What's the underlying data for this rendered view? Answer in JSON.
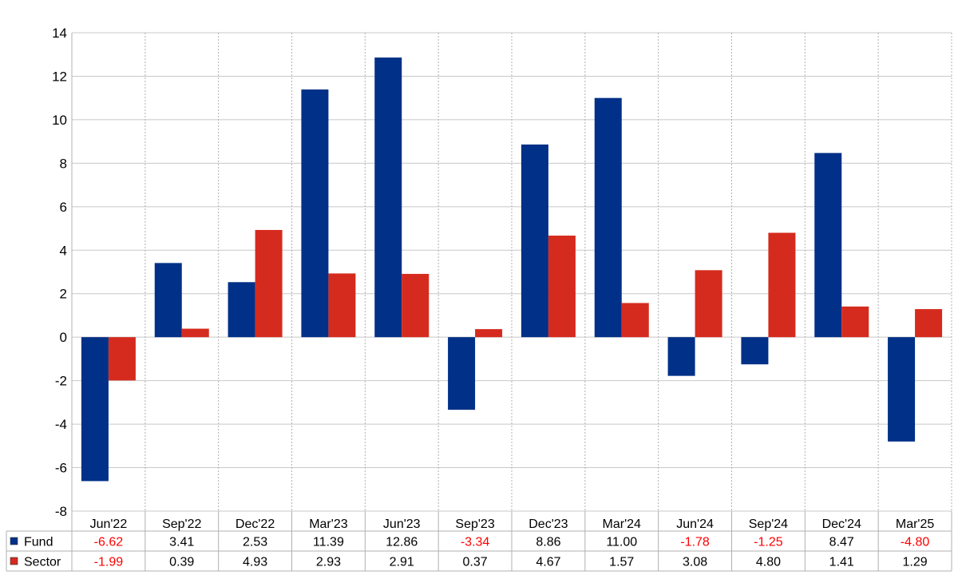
{
  "chart_data": {
    "type": "bar",
    "categories": [
      "Jun'22",
      "Sep'22",
      "Dec'22",
      "Mar'23",
      "Jun'23",
      "Sep'23",
      "Dec'23",
      "Mar'24",
      "Jun'24",
      "Sep'24",
      "Dec'24",
      "Mar'25"
    ],
    "series": [
      {
        "name": "Fund",
        "color": "#003087",
        "values": [
          -6.62,
          3.41,
          2.53,
          11.39,
          12.86,
          -3.34,
          8.86,
          11.0,
          -1.78,
          -1.25,
          8.47,
          -4.8
        ],
        "labels": [
          "-6.62",
          "3.41",
          "2.53",
          "11.39",
          "12.86",
          "-3.34",
          "8.86",
          "11.00",
          "-1.78",
          "-1.25",
          "8.47",
          "-4.80"
        ]
      },
      {
        "name": "Sector",
        "color": "#d52b1e",
        "values": [
          -1.99,
          0.39,
          4.93,
          2.93,
          2.91,
          0.37,
          4.67,
          1.57,
          3.08,
          4.8,
          1.41,
          1.29
        ],
        "labels": [
          "-1.99",
          "0.39",
          "4.93",
          "2.93",
          "2.91",
          "0.37",
          "4.67",
          "1.57",
          "3.08",
          "4.80",
          "1.41",
          "1.29"
        ]
      }
    ],
    "ylim": [
      -8,
      14
    ],
    "yticks": [
      -8,
      -6,
      -4,
      -2,
      0,
      2,
      4,
      6,
      8,
      10,
      12,
      14
    ],
    "ytick_labels": [
      "-8",
      "-6",
      "-4",
      "-2",
      "0",
      "2",
      "4",
      "6",
      "8",
      "10",
      "12",
      "14"
    ],
    "grid": true,
    "negative_label_color": "#ff0000",
    "positive_label_color": "#000000",
    "legend_placement": "data-table-left"
  }
}
